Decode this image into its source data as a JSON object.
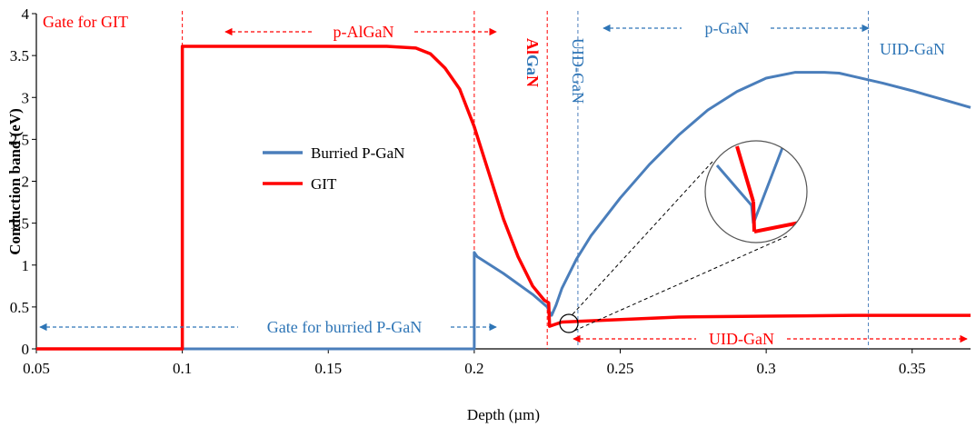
{
  "chart_data": {
    "type": "line",
    "title": "",
    "xlabel": "Depth (µm)",
    "ylabel": "Conduction band (eV)",
    "xlim": [
      0.05,
      0.37
    ],
    "ylim": [
      0,
      4
    ],
    "x_ticks": [
      "0.05",
      "0.1",
      "0.15",
      "0.2",
      "0.25",
      "0.3",
      "0.35"
    ],
    "y_ticks": [
      "0",
      "0.5",
      "1",
      "1.5",
      "2",
      "2.5",
      "3",
      "3.5",
      "4"
    ],
    "x_tick_values": [
      0.05,
      0.1,
      0.15,
      0.2,
      0.25,
      0.3,
      0.35
    ],
    "y_tick_values": [
      0,
      0.5,
      1,
      1.5,
      2,
      2.5,
      3,
      3.5,
      4
    ],
    "grid": false,
    "legend_placement": "center-left",
    "series": [
      {
        "name": "Burried P-GaN",
        "color": "#4a7ebb",
        "points": [
          [
            0.05,
            0
          ],
          [
            0.1,
            0
          ],
          [
            0.2,
            0
          ],
          [
            0.2,
            0
          ],
          [
            0.2,
            1.15
          ],
          [
            0.201,
            1.1
          ],
          [
            0.21,
            0.9
          ],
          [
            0.22,
            0.65
          ],
          [
            0.225,
            0.5
          ],
          [
            0.2255,
            0.46
          ],
          [
            0.2265,
            0.4
          ],
          [
            0.228,
            0.52
          ],
          [
            0.23,
            0.72
          ],
          [
            0.235,
            1.07
          ],
          [
            0.24,
            1.35
          ],
          [
            0.25,
            1.8
          ],
          [
            0.26,
            2.2
          ],
          [
            0.27,
            2.55
          ],
          [
            0.28,
            2.85
          ],
          [
            0.29,
            3.07
          ],
          [
            0.3,
            3.23
          ],
          [
            0.31,
            3.3
          ],
          [
            0.32,
            3.3
          ],
          [
            0.325,
            3.29
          ],
          [
            0.33,
            3.25
          ],
          [
            0.34,
            3.17
          ],
          [
            0.35,
            3.08
          ],
          [
            0.36,
            2.98
          ],
          [
            0.37,
            2.88
          ]
        ]
      },
      {
        "name": "GIT",
        "color": "#ff0000",
        "points": [
          [
            0.05,
            0
          ],
          [
            0.1,
            0
          ],
          [
            0.1,
            3.61
          ],
          [
            0.15,
            3.61
          ],
          [
            0.17,
            3.61
          ],
          [
            0.18,
            3.59
          ],
          [
            0.185,
            3.52
          ],
          [
            0.19,
            3.35
          ],
          [
            0.195,
            3.1
          ],
          [
            0.2,
            2.65
          ],
          [
            0.205,
            2.1
          ],
          [
            0.21,
            1.55
          ],
          [
            0.215,
            1.1
          ],
          [
            0.22,
            0.75
          ],
          [
            0.224,
            0.58
          ],
          [
            0.2255,
            0.55
          ],
          [
            0.2258,
            0.27
          ],
          [
            0.23,
            0.32
          ],
          [
            0.25,
            0.35
          ],
          [
            0.27,
            0.38
          ],
          [
            0.3,
            0.39
          ],
          [
            0.33,
            0.4
          ],
          [
            0.37,
            0.4
          ]
        ]
      }
    ],
    "vertical_lines": [
      {
        "x": 0.1,
        "color": "#ff0000"
      },
      {
        "x": 0.2,
        "color": "#ff0000"
      },
      {
        "x": 0.225,
        "color": "#ff0000"
      },
      {
        "x": 0.2355,
        "color": "#4a7ebb"
      },
      {
        "x": 0.335,
        "color": "#4a7ebb"
      }
    ],
    "annotations": {
      "gate_git": "Gate for GIT",
      "p_algan": "p-AlGaN",
      "algan": "AlGaN",
      "uid_gan_vertical": "UID-GaN",
      "p_gan": "p-GaN",
      "uid_gan_top": "UID-GaN",
      "gate_buried": "Gate for burried P-GaN",
      "uid_gan_bottom": "UID-GaN"
    },
    "annotation_colors": {
      "red": "#ff0000",
      "blue": "#2e75b6"
    }
  }
}
